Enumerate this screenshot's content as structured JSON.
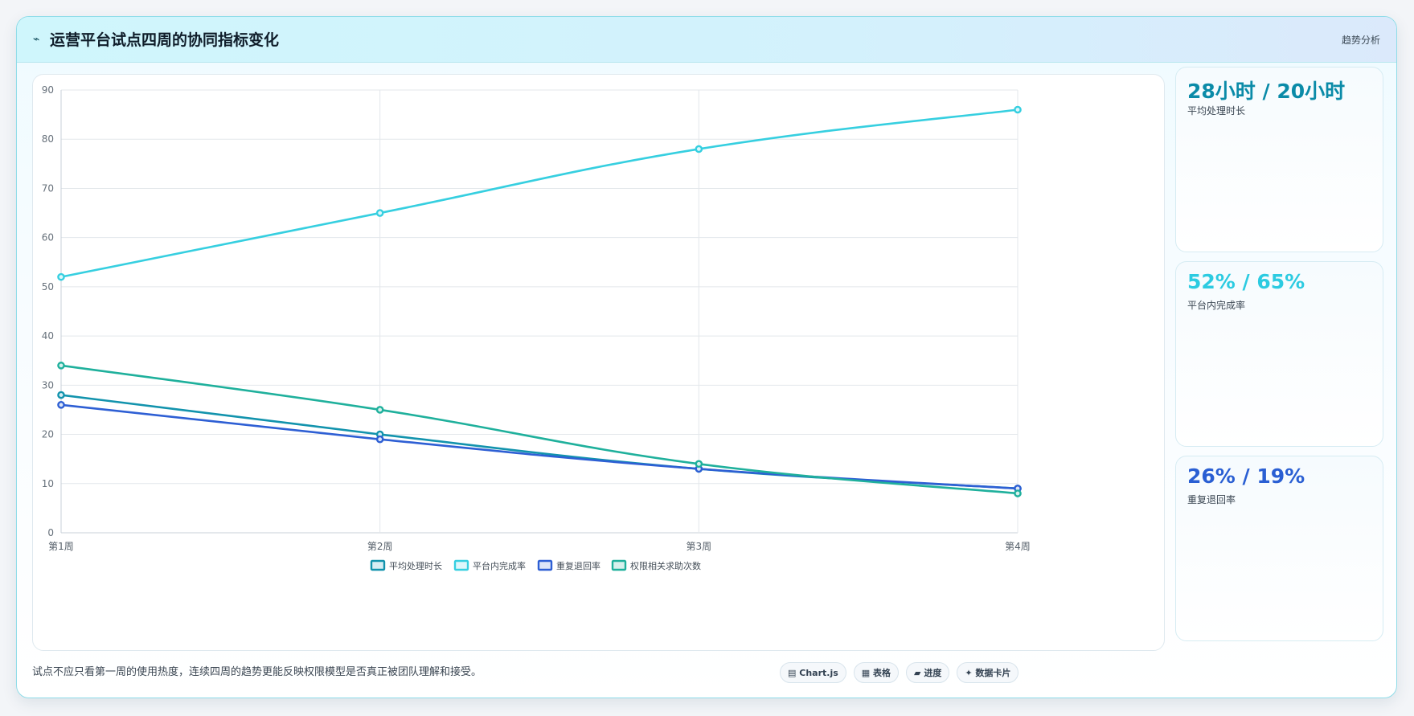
{
  "header": {
    "icon": "⌁",
    "title": "运营平台试点四周的协同指标变化",
    "badge": "趋势分析"
  },
  "stats": [
    {
      "value": "28小时 / 20小时",
      "label": "平均处理时长",
      "color": "#0b8ba8"
    },
    {
      "value": "52% / 65%",
      "label": "平台内完成率",
      "color": "#2ccbe1"
    },
    {
      "value": "26% / 19%",
      "label": "重复退回率",
      "color": "#2a5fd3"
    }
  ],
  "footnote": "试点不应只看第一周的使用热度，连续四周的趋势更能反映权限模型是否真正被团队理解和接受。",
  "chips": [
    {
      "icon": "▤",
      "label": "Chart.js"
    },
    {
      "icon": "▦",
      "label": "表格"
    },
    {
      "icon": "▰",
      "label": "进度"
    },
    {
      "icon": "✦",
      "label": "数据卡片"
    }
  ],
  "chart_data": {
    "type": "line",
    "categories": [
      "第1周",
      "第2周",
      "第3周",
      "第4周"
    ],
    "ylim": [
      0,
      90
    ],
    "yticks": [
      0,
      10,
      20,
      30,
      40,
      50,
      60,
      70,
      80,
      90
    ],
    "grid": true,
    "legend_position": "bottom",
    "series": [
      {
        "name": "平均处理时长",
        "values": [
          28,
          20,
          13,
          9
        ],
        "color": "#1293ad",
        "fill": "#d6eef4"
      },
      {
        "name": "平台内完成率",
        "values": [
          52,
          65,
          78,
          86
        ],
        "color": "#36cfe0",
        "fill": "#ddf7fb"
      },
      {
        "name": "重复退回率",
        "values": [
          26,
          19,
          13,
          9
        ],
        "color": "#2e5fd4",
        "fill": "#dde6f8"
      },
      {
        "name": "权限相关求助次数",
        "values": [
          34,
          25,
          14,
          8
        ],
        "color": "#1fb09c",
        "fill": "#d7f1ed"
      }
    ]
  }
}
